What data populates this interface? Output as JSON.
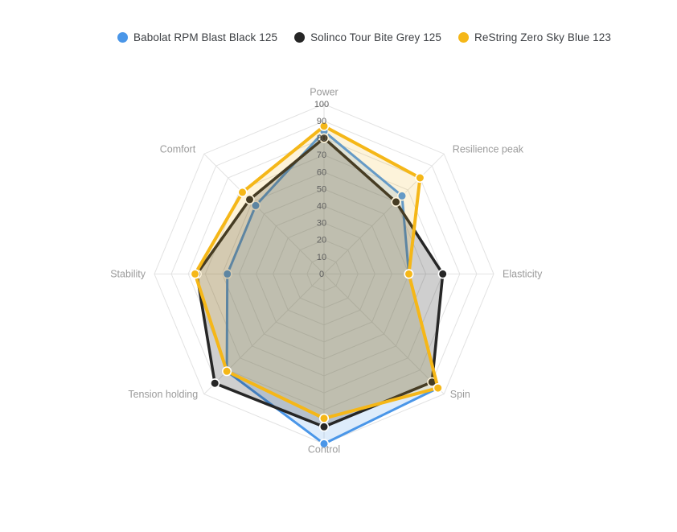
{
  "legend": {
    "items": [
      {
        "label": "Babolat RPM Blast Black 125",
        "color": "#4a96e8"
      },
      {
        "label": "Solinco Tour Bite Grey 125",
        "color": "#262626"
      },
      {
        "label": "ReString Zero Sky Blue 123",
        "color": "#f5b718"
      }
    ]
  },
  "chart_data": {
    "type": "radar",
    "title": "",
    "axes": [
      "Power",
      "Resilience peak",
      "Elasticity",
      "Spin",
      "Control",
      "Tension holding",
      "Stability",
      "Comfort"
    ],
    "max": 100,
    "min": 0,
    "tick_step": 10,
    "ticks": [
      "0",
      "10",
      "20",
      "30",
      "40",
      "50",
      "60",
      "70",
      "80",
      "90",
      "100"
    ],
    "grid": true,
    "legend_position": "top",
    "series": [
      {
        "name": "Babolat RPM Blast Black 125",
        "color": "#4a96e8",
        "fill_opacity": 0.18,
        "values": [
          84,
          65,
          50,
          95,
          100,
          81,
          57,
          57
        ]
      },
      {
        "name": "Solinco Tour Bite Grey 125",
        "color": "#262626",
        "fill_opacity": 0.22,
        "values": [
          80,
          60,
          70,
          90,
          90,
          91,
          75,
          62
        ]
      },
      {
        "name": "ReString Zero Sky Blue 123",
        "color": "#f5b718",
        "fill_opacity": 0.16,
        "values": [
          87,
          80,
          50,
          95,
          85,
          81,
          76,
          68
        ]
      }
    ],
    "style": {
      "grid_color": "#e2e2e2",
      "axis_label_color": "#9b9b9b",
      "tick_label_color": "#5f5f5f"
    }
  }
}
